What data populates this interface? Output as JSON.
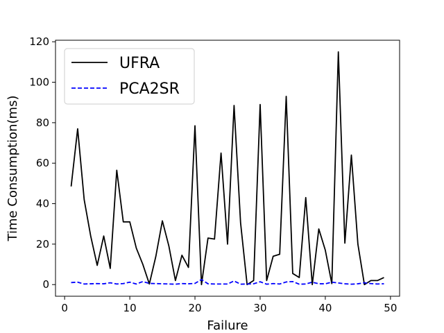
{
  "chart_data": {
    "type": "line",
    "title": "",
    "xlabel": "Failure",
    "ylabel": "Time Consumption(ms)",
    "xlim": [
      -1.4,
      51.4
    ],
    "ylim": [
      -5.75,
      120.75
    ],
    "xticks": [
      0,
      10,
      20,
      30,
      40,
      50
    ],
    "yticks": [
      0,
      20,
      40,
      60,
      80,
      100,
      120
    ],
    "legend_position": "top-left",
    "grid": false,
    "x": [
      1,
      2,
      3,
      4,
      5,
      6,
      7,
      8,
      9,
      10,
      11,
      12,
      13,
      14,
      15,
      16,
      17,
      18,
      19,
      20,
      21,
      22,
      23,
      24,
      25,
      26,
      27,
      28,
      29,
      30,
      31,
      32,
      33,
      34,
      35,
      36,
      37,
      38,
      39,
      40,
      41,
      42,
      43,
      44,
      45,
      46,
      47,
      48,
      49
    ],
    "series": [
      {
        "name": "UFRA",
        "color": "#000000",
        "style": "solid",
        "values": [
          48.5,
          77,
          42,
          24,
          9.5,
          24,
          8,
          56.5,
          31,
          31,
          18,
          10,
          0.3,
          14,
          31.5,
          19,
          2,
          14.5,
          8.5,
          78.5,
          0,
          23,
          22.5,
          65,
          20,
          88.5,
          30.5,
          0,
          2,
          89,
          2,
          14,
          15,
          93,
          5.5,
          3.5,
          43,
          0,
          27.5,
          17,
          0.5,
          115,
          20.5,
          64,
          20,
          0,
          2,
          2,
          3.5
        ]
      },
      {
        "name": "PCA2SR",
        "color": "#0000ff",
        "style": "dashed",
        "values": [
          1,
          1.2,
          0.3,
          0.4,
          0.5,
          0.4,
          0.9,
          0.3,
          0.5,
          1.2,
          0.3,
          1.5,
          0.6,
          0.5,
          0.4,
          0.3,
          0.2,
          0.5,
          0.4,
          0.6,
          2.5,
          0.4,
          0.3,
          0.3,
          0.3,
          1.8,
          0.2,
          0.3,
          0.4,
          1.4,
          0.2,
          0.5,
          0.3,
          1.3,
          1.5,
          0.2,
          0.3,
          1.2,
          0.4,
          0.4,
          1.2,
          0.8,
          0.4,
          0.2,
          0.4,
          0.9,
          0.5,
          0.3,
          0.4
        ]
      }
    ]
  }
}
